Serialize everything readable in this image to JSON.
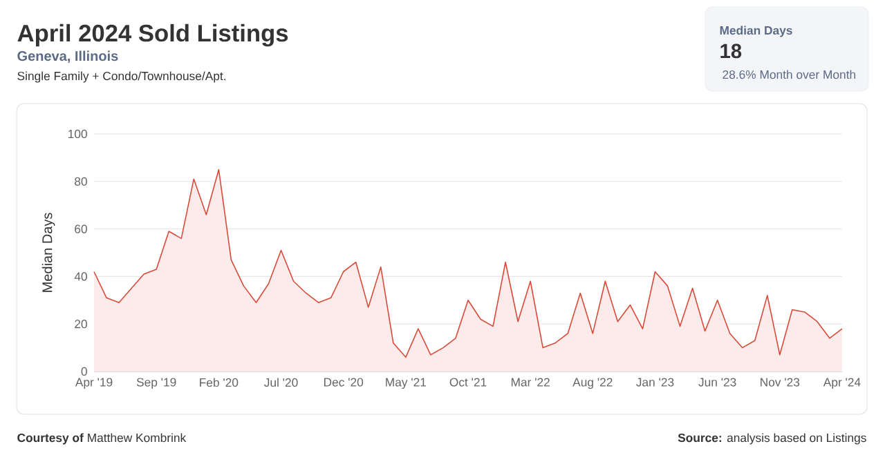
{
  "chart_data": {
    "type": "area",
    "title": "April 2024 Sold Listings",
    "subtitle": "Geneva, Illinois",
    "ylabel": "Median Days",
    "categories": [
      "Apr '19",
      null,
      null,
      null,
      null,
      "Sep '19",
      null,
      null,
      null,
      null,
      "Feb '20",
      null,
      null,
      null,
      null,
      "Jul '20",
      null,
      null,
      null,
      null,
      "Dec '20",
      null,
      null,
      null,
      null,
      "May '21",
      null,
      null,
      null,
      null,
      "Oct '21",
      null,
      null,
      null,
      null,
      "Mar '22",
      null,
      null,
      null,
      null,
      "Aug '22",
      null,
      null,
      null,
      null,
      "Jan '23",
      null,
      null,
      null,
      null,
      "Jun '23",
      null,
      null,
      null,
      null,
      "Nov '23",
      null,
      null,
      null,
      null,
      "Apr '24"
    ],
    "series": [
      {
        "color": "#d94a38",
        "values": [
          42,
          31,
          29,
          35,
          41,
          43,
          59,
          56,
          81,
          66,
          85,
          47,
          36,
          29,
          37,
          51,
          38,
          33,
          29,
          31,
          42,
          46,
          27,
          44,
          12,
          6,
          18,
          7,
          10,
          14,
          30,
          22,
          19,
          46,
          21,
          38,
          10,
          12,
          16,
          33,
          16,
          38,
          21,
          28,
          18,
          42,
          36,
          19,
          35,
          17,
          30,
          16,
          10,
          13,
          32,
          7,
          26,
          25,
          21,
          14,
          18
        ]
      }
    ],
    "ylim": [
      0,
      100
    ],
    "yticks": [
      0,
      20,
      40,
      60,
      80,
      100
    ],
    "grid": "y",
    "annotations": [
      "Single Family + Condo/Townhouse/Apt.",
      "Median Days",
      "18",
      "28.6% Month over Month",
      "**Courtesy of** Matthew Kombrink",
      "**Source:** analysis based on Listings"
    ]
  }
}
